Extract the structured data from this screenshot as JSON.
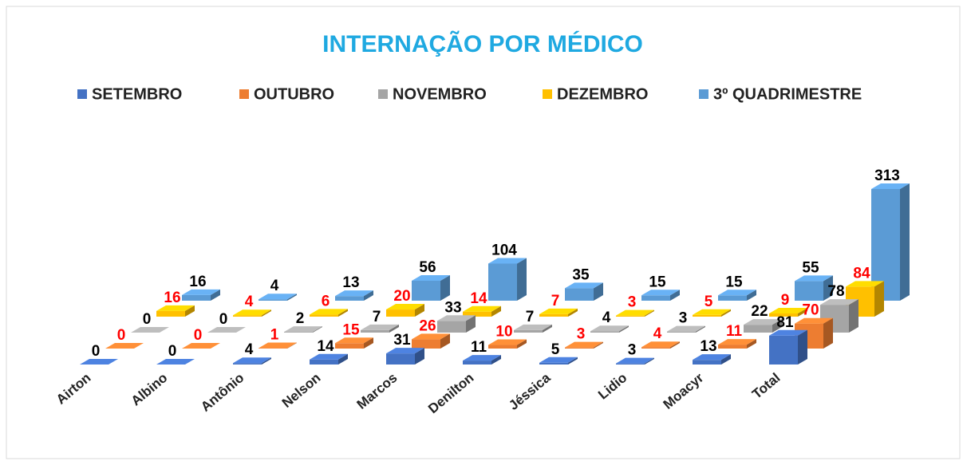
{
  "chart_data": {
    "type": "bar3d",
    "title": "INTERNAÇÃO POR MÉDICO",
    "categories": [
      "Airton",
      "Albino",
      "Antônio",
      "Nelson",
      "Marcos",
      "Denilton",
      "Jéssica",
      "Lidio",
      "Moacyr",
      "Total"
    ],
    "series": [
      {
        "name": "SETEMBRO",
        "color": "#4472c4",
        "label_color": "#000000",
        "values": [
          0,
          0,
          4,
          14,
          31,
          11,
          5,
          3,
          13,
          81
        ]
      },
      {
        "name": "OUTUBRO",
        "color": "#ed7d31",
        "label_color": "#ff0000",
        "values": [
          0,
          0,
          1,
          15,
          26,
          10,
          3,
          4,
          11,
          70
        ]
      },
      {
        "name": "NOVEMBRO",
        "color": "#a5a5a5",
        "label_color": "#000000",
        "values": [
          0,
          0,
          2,
          7,
          33,
          7,
          4,
          3,
          22,
          78
        ]
      },
      {
        "name": "DEZEMBRO",
        "color": "#ffc000",
        "label_color": "#ff0000",
        "values": [
          16,
          4,
          6,
          20,
          14,
          7,
          3,
          5,
          9,
          84
        ]
      },
      {
        "name": "3º QUADRIMESTRE",
        "color": "#5b9bd5",
        "label_color": "#000000",
        "values": [
          16,
          4,
          13,
          56,
          104,
          35,
          15,
          15,
          55,
          313
        ]
      }
    ],
    "title_color": "#1fa9e1"
  }
}
